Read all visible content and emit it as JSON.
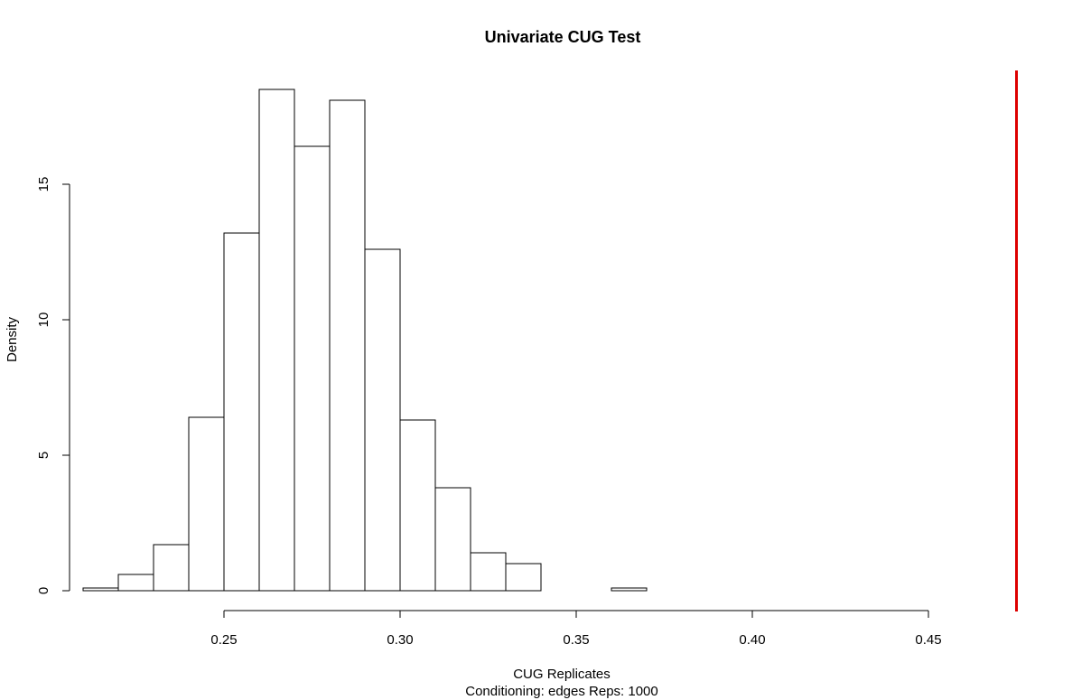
{
  "chart_data": {
    "type": "bar",
    "title": "Univariate CUG Test",
    "xlabel": "CUG Replicates",
    "subtitle": "Conditioning: edges Reps: 1000",
    "ylabel": "Density",
    "xlim": [
      0.21,
      0.475
    ],
    "ylim": [
      0,
      19.2
    ],
    "bin_width": 0.01,
    "bins": [
      {
        "start": 0.21,
        "end": 0.22,
        "density": 0.1
      },
      {
        "start": 0.22,
        "end": 0.23,
        "density": 0.6
      },
      {
        "start": 0.23,
        "end": 0.24,
        "density": 1.7
      },
      {
        "start": 0.24,
        "end": 0.25,
        "density": 6.4
      },
      {
        "start": 0.25,
        "end": 0.26,
        "density": 13.2
      },
      {
        "start": 0.26,
        "end": 0.27,
        "density": 18.5
      },
      {
        "start": 0.27,
        "end": 0.28,
        "density": 16.4
      },
      {
        "start": 0.28,
        "end": 0.29,
        "density": 18.1
      },
      {
        "start": 0.29,
        "end": 0.3,
        "density": 12.6
      },
      {
        "start": 0.3,
        "end": 0.31,
        "density": 6.3
      },
      {
        "start": 0.31,
        "end": 0.32,
        "density": 3.8
      },
      {
        "start": 0.32,
        "end": 0.33,
        "density": 1.4
      },
      {
        "start": 0.33,
        "end": 0.34,
        "density": 1.0
      },
      {
        "start": 0.34,
        "end": 0.35,
        "density": 0.0
      },
      {
        "start": 0.35,
        "end": 0.36,
        "density": 0.0
      },
      {
        "start": 0.36,
        "end": 0.37,
        "density": 0.1
      }
    ],
    "x_ticks": [
      {
        "value": 0.25,
        "label": "0.25"
      },
      {
        "value": 0.3,
        "label": "0.30"
      },
      {
        "value": 0.35,
        "label": "0.35"
      },
      {
        "value": 0.4,
        "label": "0.40"
      },
      {
        "value": 0.45,
        "label": "0.45"
      }
    ],
    "y_ticks": [
      {
        "value": 0,
        "label": "0"
      },
      {
        "value": 5,
        "label": "5"
      },
      {
        "value": 10,
        "label": "10"
      },
      {
        "value": 15,
        "label": "15"
      }
    ],
    "observed_value": 0.475,
    "observed_line_color": "#dd0000",
    "bar_fill": "#ffffff",
    "bar_stroke": "#000000",
    "grid": false
  }
}
